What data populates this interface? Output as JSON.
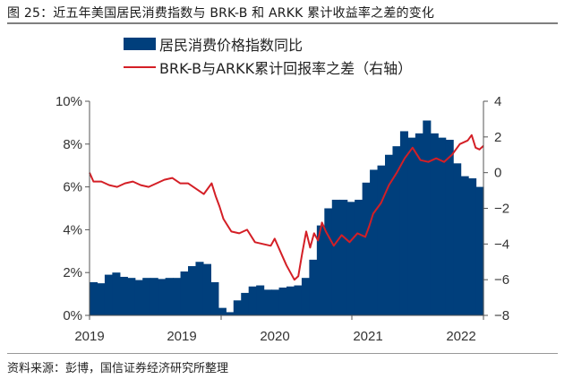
{
  "title": "图 25：近五年美国居民消费指数与 BRK-B 和 ARKK 累计收益率之差的变化",
  "legend": {
    "bar_label": "居民消费价格指数同比",
    "line_label": "BRK-B与ARKK累计回报率之差（右轴）"
  },
  "source": "资料来源：彭博，国信证券经济研究所整理",
  "colors": {
    "bar": "#003f7c",
    "line": "#d41f26",
    "axis": "#555555"
  },
  "axes": {
    "left_ticks": [
      "0%",
      "2%",
      "4%",
      "6%",
      "8%",
      "10%"
    ],
    "right_ticks": [
      "-8",
      "-6",
      "-4",
      "-2",
      "0",
      "2",
      "4"
    ],
    "x_ticks": [
      "2019",
      "2019",
      "2020",
      "2021",
      "2022"
    ]
  },
  "chart_data": {
    "type": "bar+line",
    "title": "近五年美国居民消费指数与 BRK-B 和 ARKK 累计收益率之差的变化",
    "xlabel": "",
    "ylabel_left": "居民消费价格指数同比 (%)",
    "ylabel_right": "BRK-B与ARKK累计回报率之差",
    "ylim_left": [
      0,
      10
    ],
    "ylim_right": [
      -8,
      4
    ],
    "x_tick_labels": [
      "2019",
      "2019",
      "2020",
      "2021",
      "2022"
    ],
    "legend_position": "top",
    "grid": false,
    "series": [
      {
        "name": "居民消费价格指数同比",
        "type": "bar",
        "axis": "left",
        "values": [
          1.55,
          1.5,
          1.9,
          2.0,
          1.8,
          1.75,
          1.65,
          1.75,
          1.75,
          1.7,
          1.75,
          1.75,
          2.05,
          2.3,
          2.5,
          2.4,
          1.55,
          0.35,
          0.15,
          0.7,
          1.05,
          1.35,
          1.4,
          1.2,
          1.2,
          1.3,
          1.35,
          1.4,
          1.75,
          2.6,
          4.2,
          5.0,
          5.4,
          5.4,
          5.3,
          5.4,
          6.2,
          6.8,
          7.0,
          7.5,
          7.9,
          8.6,
          8.3,
          8.5,
          9.1,
          8.5,
          8.3,
          8.2,
          7.1,
          6.5,
          6.4,
          6.0
        ]
      },
      {
        "name": "BRK-B与ARKK累计回报率之差（右轴）",
        "type": "line",
        "axis": "right",
        "x_frac": [
          0.0,
          0.01,
          0.03,
          0.05,
          0.07,
          0.09,
          0.11,
          0.13,
          0.15,
          0.17,
          0.19,
          0.21,
          0.23,
          0.25,
          0.27,
          0.29,
          0.31,
          0.32,
          0.33,
          0.34,
          0.36,
          0.38,
          0.4,
          0.42,
          0.44,
          0.46,
          0.47,
          0.49,
          0.5,
          0.51,
          0.52,
          0.53,
          0.54,
          0.55,
          0.56,
          0.57,
          0.58,
          0.59,
          0.6,
          0.62,
          0.64,
          0.66,
          0.68,
          0.7,
          0.71,
          0.72,
          0.74,
          0.76,
          0.78,
          0.8,
          0.82,
          0.84,
          0.86,
          0.88,
          0.9,
          0.92,
          0.94,
          0.96,
          0.97,
          0.98,
          0.99,
          1.0
        ],
        "values": [
          0.0,
          -0.5,
          -0.5,
          -0.7,
          -0.8,
          -0.6,
          -0.5,
          -0.7,
          -0.8,
          -0.6,
          -0.4,
          -0.3,
          -0.6,
          -0.6,
          -0.9,
          -1.2,
          -0.6,
          -1.3,
          -1.9,
          -2.6,
          -3.3,
          -3.4,
          -3.2,
          -3.9,
          -4.0,
          -4.1,
          -3.7,
          -4.7,
          -5.2,
          -5.6,
          -6.0,
          -5.8,
          -4.5,
          -3.3,
          -4.2,
          -3.4,
          -3.8,
          -2.8,
          -3.3,
          -4.1,
          -3.5,
          -3.9,
          -3.4,
          -3.6,
          -3.0,
          -2.3,
          -1.7,
          -0.7,
          0.0,
          0.8,
          1.4,
          0.7,
          0.6,
          0.8,
          0.6,
          1.0,
          1.6,
          1.8,
          2.1,
          1.4,
          1.3,
          1.5
        ]
      }
    ]
  }
}
